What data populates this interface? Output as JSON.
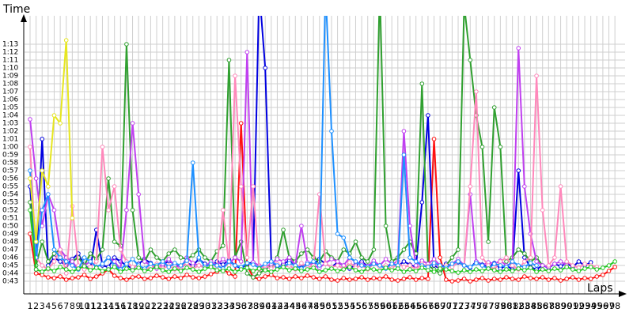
{
  "chart_data": {
    "type": "line",
    "x_label": "Laps",
    "y_label": "Time",
    "grid": true,
    "categories": [
      1,
      2,
      3,
      4,
      5,
      6,
      7,
      8,
      9,
      10,
      11,
      12,
      13,
      14,
      15,
      16,
      17,
      18,
      19,
      20,
      21,
      22,
      23,
      24,
      25,
      26,
      27,
      28,
      29,
      30,
      31,
      32,
      33,
      34,
      35,
      36,
      37,
      38,
      39,
      40,
      41,
      42,
      43,
      44,
      45,
      46,
      47,
      48,
      49,
      50,
      51,
      52,
      53,
      54,
      55,
      56,
      57,
      58,
      59,
      60,
      61,
      62,
      63,
      64,
      65,
      66,
      67,
      68,
      69,
      70,
      71,
      72,
      73,
      74,
      75,
      76,
      77,
      78,
      79,
      80,
      81,
      82,
      83,
      84,
      85,
      86,
      87,
      88,
      89,
      90,
      91,
      92,
      93,
      94,
      95,
      96,
      97,
      98
    ],
    "ylim": [
      41.4,
      76.6
    ],
    "yticks": [
      {
        "value": 43,
        "label": "0:43"
      },
      {
        "value": 44,
        "label": "0:44"
      },
      {
        "value": 45,
        "label": "0:45"
      },
      {
        "value": 46,
        "label": "0:46"
      },
      {
        "value": 47,
        "label": "0:47"
      },
      {
        "value": 48,
        "label": "0:48"
      },
      {
        "value": 49,
        "label": "0:49"
      },
      {
        "value": 50,
        "label": "0:50"
      },
      {
        "value": 51,
        "label": "0:51"
      },
      {
        "value": 52,
        "label": "0:52"
      },
      {
        "value": 53,
        "label": "0:53"
      },
      {
        "value": 54,
        "label": "0:54"
      },
      {
        "value": 55,
        "label": "0:55"
      },
      {
        "value": 56,
        "label": "0:56"
      },
      {
        "value": 57,
        "label": "0:57"
      },
      {
        "value": 58,
        "label": "0:58"
      },
      {
        "value": 59,
        "label": "0:59"
      },
      {
        "value": 60,
        "label": "1:00"
      },
      {
        "value": 61,
        "label": "1:01"
      },
      {
        "value": 62,
        "label": "1:02"
      },
      {
        "value": 63,
        "label": "1:03"
      },
      {
        "value": 64,
        "label": "1:04"
      },
      {
        "value": 65,
        "label": "1:05"
      },
      {
        "value": 66,
        "label": "1:06"
      },
      {
        "value": 67,
        "label": "1:07"
      },
      {
        "value": 68,
        "label": "1:08"
      },
      {
        "value": 69,
        "label": "1:09"
      },
      {
        "value": 70,
        "label": "1:10"
      },
      {
        "value": 71,
        "label": "1:11"
      },
      {
        "value": 72,
        "label": "1:12"
      },
      {
        "value": 73,
        "label": "1:13"
      }
    ],
    "series": [
      {
        "color": "#ff1010",
        "values": [
          49,
          44,
          43.8,
          43.5,
          43.4,
          43.6,
          43.2,
          43.4,
          43.5,
          43.8,
          43.3,
          43.6,
          44,
          44.5,
          43.7,
          43.4,
          43.2,
          43.5,
          43.6,
          43.3,
          43.4,
          43.7,
          43.5,
          43.3,
          43.6,
          43.4,
          43.8,
          43.5,
          43.4,
          43.6,
          43.9,
          44.2,
          44.5,
          44,
          43.6,
          63,
          45,
          43.5,
          43.3,
          43.6,
          43.8,
          43.4,
          43.5,
          43.3,
          43.6,
          43.4,
          43.7,
          43.5,
          43.3,
          43.6,
          43.2,
          43.1,
          43.4,
          43.2,
          43.3,
          43.5,
          43.2,
          43.4,
          43.3,
          43.6,
          43.2,
          43.1,
          43.3,
          43.5,
          43.2,
          43.4,
          43.3,
          61,
          46,
          43.2,
          43,
          43.1,
          43.3,
          43,
          43.2,
          43.4,
          43.1,
          43.3,
          43.2,
          43.5,
          43.3,
          43.2,
          43.6,
          43.4,
          43.3,
          43.5,
          43.2,
          43.4,
          43.1,
          43.3,
          43.5,
          43.2,
          43.4,
          43.3,
          43.6,
          43.8,
          44.3,
          44.8
        ]
      },
      {
        "color": "#0000e0",
        "values": [
          55,
          44.5,
          61,
          45,
          46,
          45.5,
          45,
          45.8,
          46.5,
          45,
          44.5,
          49.5,
          45,
          44.8,
          46,
          45.5,
          45,
          44.6,
          45.2,
          45.8,
          45.3,
          44.8,
          45,
          45.6,
          45.1,
          44.7,
          45.3,
          45,
          45.8,
          45.2,
          44.9,
          45.5,
          45.1,
          45.7,
          45,
          44.6,
          45.2,
          45.4,
          80,
          70,
          45.5,
          44.8,
          45.2,
          45.6,
          45,
          44.7,
          45.3,
          45.1,
          45.8,
          45.2,
          44.8,
          45.4,
          45,
          44.6,
          45.1,
          45.5,
          44.9,
          45.2,
          45,
          44.7,
          45.3,
          44.9,
          45.5,
          45.1,
          44.8,
          53,
          64,
          45,
          44.6,
          45.2,
          44.9,
          45.4,
          45,
          44.7,
          45.5,
          45.1,
          44.8,
          45.3,
          44.6,
          45,
          44.5,
          57,
          46,
          44.8,
          44.5,
          45,
          44.7,
          45.2,
          44.9,
          45.3,
          44.8,
          45.5,
          45,
          45.4,
          null,
          null,
          null,
          null
        ]
      },
      {
        "color": "#30a030",
        "values": [
          53,
          45,
          48,
          45.5,
          46.5,
          47,
          46,
          45.5,
          46,
          45,
          46.5,
          45.8,
          47,
          56,
          48,
          47.5,
          73,
          52,
          46,
          45.5,
          47,
          46,
          45.5,
          46.5,
          47,
          46,
          45.8,
          46.3,
          47,
          46,
          45.5,
          46.8,
          47.5,
          71,
          46,
          48,
          44,
          43.5,
          44,
          44.5,
          45,
          46,
          49.5,
          46,
          45.5,
          46.5,
          47,
          46,
          45.5,
          46.8,
          46,
          45.5,
          47,
          46.5,
          48,
          46,
          45.5,
          47,
          80,
          50,
          45.5,
          46,
          47,
          48,
          46.5,
          68,
          45,
          44.5,
          44,
          45,
          46,
          47,
          78,
          71,
          64,
          60,
          48,
          65,
          60,
          45.5,
          46,
          47,
          46.5,
          45.5,
          46,
          45,
          null,
          null,
          null,
          null,
          null,
          null,
          null,
          null,
          null,
          null,
          null,
          null
        ]
      },
      {
        "color": "#c040f0",
        "values": [
          63.5,
          56,
          50,
          54,
          52,
          47,
          46,
          45.5,
          44.5,
          45,
          45.5,
          44.8,
          45.2,
          46,
          45.5,
          44.5,
          52,
          63,
          54,
          45.5,
          45,
          44.6,
          45.2,
          45.8,
          45,
          44.7,
          46,
          45.3,
          45,
          44.8,
          45.5,
          45,
          45.8,
          45.2,
          46,
          45.5,
          72,
          45.4,
          45,
          44.8,
          45.2,
          45.8,
          45.5,
          46,
          45,
          50,
          45.4,
          45,
          44.7,
          45.3,
          45.8,
          45.5,
          45,
          46,
          45.4,
          45.2,
          44.9,
          45.6,
          45,
          45.8,
          45.2,
          45.5,
          62,
          50,
          45,
          45.6,
          45.2,
          45.8,
          45,
          44.6,
          45.2,
          45.8,
          45,
          54,
          45.5,
          45,
          45.4,
          45.2,
          45.6,
          45,
          45.3,
          72.5,
          55,
          49,
          45.5,
          45,
          44.8,
          45.2,
          45.5,
          45,
          null,
          null,
          null,
          null,
          null,
          null,
          null,
          null
        ]
      },
      {
        "color": "#ff88bb",
        "values": [
          60,
          46,
          45,
          44.5,
          45.5,
          47,
          44,
          52.5,
          45,
          44.5,
          44.8,
          45.5,
          60,
          52,
          55,
          47,
          45.5,
          44.8,
          45,
          44.5,
          44.8,
          45.2,
          44.6,
          45,
          44.5,
          44.8,
          45.3,
          44.6,
          45,
          44.7,
          45.2,
          44.8,
          52,
          45,
          69,
          55,
          46,
          55,
          44.5,
          45,
          44.6,
          45.2,
          44.8,
          45,
          44.5,
          45.3,
          44.7,
          45,
          54,
          45.2,
          44.8,
          45,
          44.6,
          45.4,
          44.7,
          45,
          44.5,
          45.2,
          44.8,
          45,
          44.6,
          45.3,
          44.8,
          45,
          44.5,
          45.2,
          44.9,
          45.4,
          44.6,
          45,
          44.8,
          45.5,
          45,
          55,
          67,
          46,
          45,
          44.5,
          45.5,
          46,
          45,
          44.5,
          45.5,
          46,
          69,
          52,
          45,
          46,
          55,
          45.5,
          45,
          44.7,
          45.2,
          45,
          44.8,
          null,
          null,
          null
        ]
      },
      {
        "color": "#1e90ff",
        "values": [
          57,
          46,
          52,
          54,
          47,
          46,
          45.5,
          45,
          44.5,
          46,
          45.5,
          44.8,
          45.2,
          46,
          45,
          44.5,
          45.2,
          45.8,
          45,
          44.6,
          45.2,
          45,
          45.5,
          44.8,
          45.3,
          45,
          45.6,
          58,
          46,
          44.8,
          45.2,
          45,
          44.6,
          45.5,
          45,
          44.8,
          45.3,
          45.1,
          44.7,
          45.2,
          45.5,
          45,
          44.8,
          45.3,
          45,
          44.6,
          45.2,
          45.5,
          45,
          80,
          62,
          49,
          48.5,
          46,
          45.5,
          45,
          44.8,
          45.2,
          45,
          44.6,
          45.2,
          45,
          59,
          46,
          45.5,
          45,
          44.8,
          45.3,
          45,
          44.7,
          45.2,
          45.5,
          45,
          44.8,
          45.3,
          45,
          44.6,
          45.2,
          45,
          44.8,
          45.5,
          45,
          44.8,
          45.3,
          45,
          null,
          null,
          null,
          null,
          null,
          null,
          null,
          null,
          null,
          null,
          null,
          null,
          null
        ]
      },
      {
        "color": "#e6e620",
        "values": [
          56,
          48,
          57,
          55,
          64,
          63,
          73.5,
          51,
          null,
          null,
          null,
          null,
          null,
          null,
          null,
          null,
          null,
          null,
          null,
          null,
          null,
          null,
          null,
          null,
          null,
          null,
          null,
          null,
          null,
          null,
          null,
          null,
          null,
          null,
          null,
          null,
          null,
          null,
          null,
          null,
          null,
          null,
          null,
          null,
          null,
          null,
          null,
          null,
          null,
          null,
          null,
          null,
          null,
          null,
          null,
          null,
          null,
          null,
          null,
          null,
          null,
          null,
          null,
          null,
          null,
          null,
          null,
          null,
          null,
          null,
          null,
          null,
          null,
          null,
          null,
          null,
          null,
          null,
          null,
          null,
          null,
          null,
          null,
          null,
          null,
          null,
          null,
          null,
          null,
          null,
          null,
          null,
          null,
          null,
          null,
          null,
          null,
          null
        ]
      },
      {
        "color": "#22c822",
        "values": [
          52,
          44.5,
          44.2,
          44.6,
          44.3,
          44.8,
          44.5,
          44.2,
          44.6,
          44.9,
          44.4,
          44.7,
          44.3,
          44.5,
          44.8,
          44.2,
          44.6,
          44.4,
          44.7,
          44.3,
          44.5,
          44.8,
          44.4,
          44.2,
          44.6,
          44.3,
          44.7,
          44.5,
          44.2,
          44.6,
          44.8,
          44.4,
          44.3,
          44.6,
          44.2,
          44.5,
          44.7,
          44.3,
          44.6,
          44.4,
          44.2,
          44.5,
          44.8,
          44.4,
          44.6,
          44.3,
          44.5,
          44.7,
          44.2,
          44.4,
          44.6,
          44.3,
          44.5,
          44.8,
          44.4,
          44.2,
          44.6,
          44.5,
          44.3,
          44.7,
          44.4,
          44.6,
          44.2,
          44.5,
          44.3,
          44.7,
          44.4,
          44.2,
          44.6,
          44.5,
          44.3,
          44.1,
          44.4,
          44.2,
          44.5,
          44.3,
          44.6,
          44.4,
          44.2,
          44.5,
          44.3,
          44.6,
          44.4,
          44.7,
          44.2,
          44.5,
          44.3,
          44.6,
          44.4,
          44.8,
          44.5,
          44.3,
          44.6,
          44.8,
          44.5,
          44.7,
          45,
          45.5
        ]
      }
    ]
  }
}
